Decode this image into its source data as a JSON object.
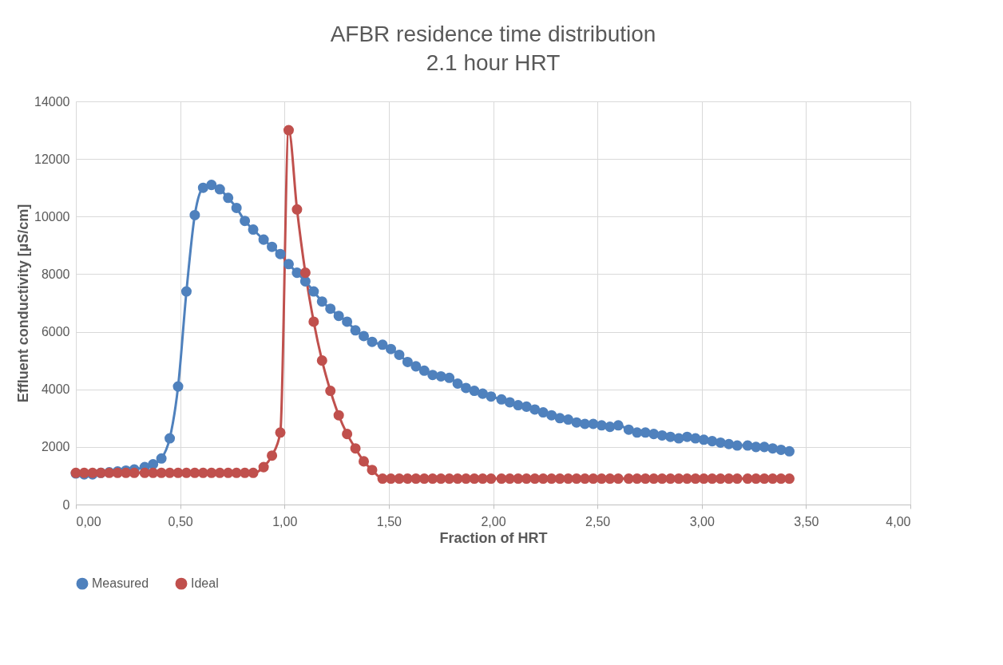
{
  "chart_data": {
    "type": "line",
    "title": "AFBR residence time distribution",
    "subtitle": "2.1 hour HRT",
    "xlabel": "Fraction of HRT",
    "ylabel": "Effluent conductivity [µS/cm]",
    "x": [
      0,
      0.04,
      0.08,
      0.12,
      0.16,
      0.2,
      0.24,
      0.28,
      0.33,
      0.37,
      0.41,
      0.45,
      0.49,
      0.53,
      0.57,
      0.61,
      0.65,
      0.69,
      0.73,
      0.77,
      0.81,
      0.85,
      0.9,
      0.94,
      0.98,
      1.02,
      1.06,
      1.1,
      1.14,
      1.18,
      1.22,
      1.26,
      1.3,
      1.34,
      1.38,
      1.42,
      1.47,
      1.51,
      1.55,
      1.59,
      1.63,
      1.67,
      1.71,
      1.75,
      1.79,
      1.83,
      1.87,
      1.91,
      1.95,
      1.99,
      2.04,
      2.08,
      2.12,
      2.16,
      2.2,
      2.24,
      2.28,
      2.32,
      2.36,
      2.4,
      2.44,
      2.48,
      2.52,
      2.56,
      2.6,
      2.65,
      2.69,
      2.73,
      2.77,
      2.81,
      2.85,
      2.89,
      2.93,
      2.97,
      3.01,
      3.05,
      3.09,
      3.13,
      3.17,
      3.22,
      3.26,
      3.3,
      3.34,
      3.38,
      3.42
    ],
    "series": [
      {
        "name": "Measured",
        "color": "#4f81bd",
        "values": [
          1080,
          1050,
          1050,
          1100,
          1120,
          1150,
          1180,
          1220,
          1300,
          1400,
          1600,
          2300,
          4100,
          7400,
          10050,
          11000,
          11100,
          10950,
          10650,
          10300,
          9850,
          9550,
          9200,
          8950,
          8700,
          8350,
          8050,
          7750,
          7400,
          7050,
          6800,
          6550,
          6350,
          6050,
          5850,
          5650,
          5550,
          5400,
          5200,
          4950,
          4800,
          4650,
          4500,
          4450,
          4400,
          4200,
          4050,
          3950,
          3850,
          3750,
          3650,
          3550,
          3450,
          3400,
          3300,
          3200,
          3100,
          3000,
          2950,
          2850,
          2800,
          2800,
          2750,
          2700,
          2750,
          2600,
          2500,
          2500,
          2450,
          2400,
          2350,
          2300,
          2350,
          2300,
          2250,
          2200,
          2150,
          2100,
          2050,
          2050,
          2000,
          2000,
          1950,
          1900,
          1850
        ]
      },
      {
        "name": "Ideal",
        "color": "#c0504d",
        "values": [
          1100,
          1100,
          1100,
          1100,
          1100,
          1100,
          1100,
          1100,
          1100,
          1100,
          1100,
          1100,
          1100,
          1100,
          1100,
          1100,
          1100,
          1100,
          1100,
          1100,
          1100,
          1100,
          1300,
          1700,
          2500,
          13000,
          10250,
          8050,
          6350,
          5000,
          3950,
          3100,
          2450,
          1950,
          1500,
          1200,
          900,
          900,
          900,
          900,
          900,
          900,
          900,
          900,
          900,
          900,
          900,
          900,
          900,
          900,
          900,
          900,
          900,
          900,
          900,
          900,
          900,
          900,
          900,
          900,
          900,
          900,
          900,
          900,
          900,
          900,
          900,
          900,
          900,
          900,
          900,
          900,
          900,
          900,
          900,
          900,
          900,
          900,
          900,
          900,
          900,
          900,
          900,
          900,
          900
        ]
      }
    ],
    "xlim": [
      0,
      4
    ],
    "xticks": [
      {
        "value": 0,
        "label": "0,00"
      },
      {
        "value": 0.5,
        "label": "0,50"
      },
      {
        "value": 1,
        "label": "1,00"
      },
      {
        "value": 1.5,
        "label": "1,50"
      },
      {
        "value": 2,
        "label": "2,00"
      },
      {
        "value": 2.5,
        "label": "2,50"
      },
      {
        "value": 3,
        "label": "3,00"
      },
      {
        "value": 3.5,
        "label": "3,50"
      },
      {
        "value": 4,
        "label": "4,00"
      }
    ],
    "ylim": [
      0,
      14000
    ],
    "yticks": [
      0,
      2000,
      4000,
      6000,
      8000,
      10000,
      12000,
      14000
    ],
    "grid": true,
    "legend": "bottom",
    "marker": "circle",
    "line_style": "solid"
  }
}
